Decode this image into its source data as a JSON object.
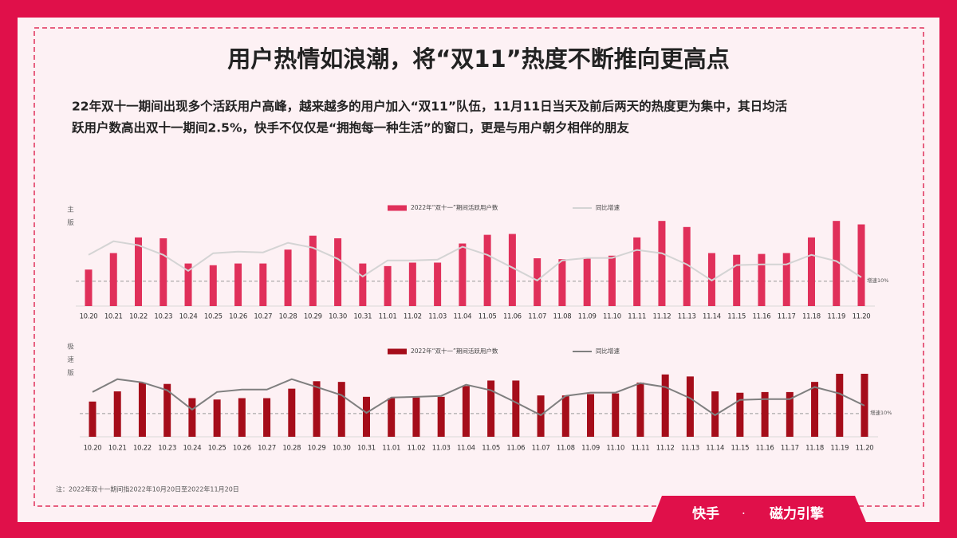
{
  "title": "用户热情如浪潮，将“双11”热度不断推向更高点",
  "description": [
    "22年双十一期间出现多个活跃用户高峰，越来越多的用户加入“双11”队伍，11月11日当天及前后两天的热度更为集中，其日均活",
    "跃用户数高出双十一期间2.5%，快手不仅仅是“拥抱每一种生活”的窗口，更是与用户朝夕相伴的朋友"
  ],
  "note": "注：2022年双十一期间指2022年10月20日至2022年11月20日",
  "footer": {
    "brand": "快手",
    "separator": "·",
    "product": "磁力引擎"
  },
  "chart_data": [
    {
      "type": "bar",
      "side_label": "主版",
      "categories": [
        "10.20",
        "10.21",
        "10.22",
        "10.23",
        "10.24",
        "10.25",
        "10.26",
        "10.27",
        "10.28",
        "10.29",
        "10.30",
        "10.31",
        "11.01",
        "11.02",
        "11.03",
        "11.04",
        "11.05",
        "11.06",
        "11.07",
        "11.08",
        "11.09",
        "11.10",
        "11.11",
        "11.12",
        "11.13",
        "11.14",
        "11.15",
        "11.16",
        "11.17",
        "11.18",
        "11.19",
        "11.20"
      ],
      "ylim": [
        0,
        100
      ],
      "y2lim": [
        0,
        35
      ],
      "reference_line": {
        "value": 10,
        "label": "增速10%"
      },
      "series": [
        {
          "name": "2022年“双十一”期间活跃用户数",
          "type": "bar",
          "color": "#e0305a",
          "values": [
            42,
            61,
            79,
            78,
            49,
            47,
            49,
            49,
            65,
            81,
            78,
            49,
            46,
            50,
            50,
            72,
            82,
            83,
            55,
            54,
            56,
            58,
            79,
            98,
            91,
            61,
            59,
            60,
            61,
            79,
            98,
            94
          ]
        },
        {
          "name": "同比增速",
          "type": "line",
          "axis": "y2",
          "color": "#d4d4d4",
          "values": [
            20.6,
            26.1,
            24.5,
            20.6,
            14.2,
            21.3,
            21.9,
            21.6,
            25.5,
            23.5,
            19,
            11.9,
            18.4,
            18.4,
            18.7,
            23.9,
            20.6,
            15.5,
            10.3,
            18.4,
            19.4,
            19.4,
            22.6,
            21.3,
            16.8,
            10.3,
            16.5,
            16.8,
            16.8,
            20.6,
            18.1,
            11.6
          ]
        }
      ]
    },
    {
      "type": "bar",
      "side_label": "极速版",
      "categories": [
        "10.20",
        "10.21",
        "10.22",
        "10.23",
        "10.24",
        "10.25",
        "10.26",
        "10.27",
        "10.28",
        "10.29",
        "10.30",
        "10.31",
        "11.01",
        "11.02",
        "11.03",
        "11.04",
        "11.05",
        "11.06",
        "11.07",
        "11.08",
        "11.09",
        "11.10",
        "11.11",
        "11.12",
        "11.13",
        "11.14",
        "11.15",
        "11.16",
        "11.17",
        "11.18",
        "11.19",
        "11.20"
      ],
      "ylim": [
        0,
        120
      ],
      "y2lim": [
        0,
        35
      ],
      "reference_line": {
        "value": 10,
        "label": "增速10%"
      },
      "series": [
        {
          "name": "2022年“双十一”期间活跃用户数",
          "type": "bar",
          "color": "#a50d1a",
          "values": [
            52,
            67,
            80,
            78,
            57,
            55,
            57,
            57,
            71,
            82,
            81,
            59,
            57,
            58,
            59,
            75,
            83,
            83,
            61,
            61,
            63,
            64,
            80,
            92,
            89,
            67,
            65,
            66,
            66,
            81,
            93,
            93
          ]
        },
        {
          "name": "同比增速",
          "type": "line",
          "axis": "y2",
          "color": "#7f7f7f",
          "values": [
            19.3,
            24.8,
            23.4,
            20,
            11.7,
            19.3,
            20.3,
            20.3,
            24.8,
            21.4,
            17.9,
            10.3,
            16.9,
            17.2,
            17.6,
            22.4,
            20,
            14.8,
            9.3,
            17.6,
            19,
            19,
            23.1,
            21.4,
            16.6,
            9.3,
            15.9,
            16.2,
            16.2,
            21.4,
            18.6,
            13.4
          ]
        }
      ]
    }
  ]
}
